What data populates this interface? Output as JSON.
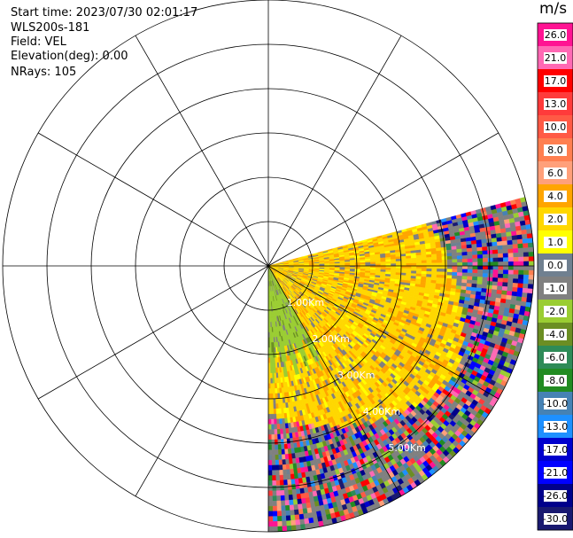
{
  "info": {
    "start_time": "Start time: 2023/07/30 02:01:17",
    "instrument": "WLS200s-181",
    "field": "Field: VEL",
    "elevation": "Elevation(deg): 0.00",
    "nrays": "NRays: 105"
  },
  "colorbar": {
    "unit": "m/s",
    "ticks": [
      "26.0",
      "21.0",
      "17.0",
      "13.0",
      "10.0",
      "8.0",
      "6.0",
      "4.0",
      "2.0",
      "1.0",
      "0.0",
      "-1.0",
      "-2.0",
      "-4.0",
      "-6.0",
      "-8.0",
      "-10.0",
      "-13.0",
      "-17.0",
      "-21.0",
      "-26.0",
      "-30.0"
    ],
    "colors": [
      "#ff1493",
      "#ff69b4",
      "#ff0000",
      "#ff3b3b",
      "#ff5a45",
      "#ff7f50",
      "#ffa07a",
      "#ffa500",
      "#ffd700",
      "#ffff00",
      "#708090",
      "#808080",
      "#9acd32",
      "#6b8e23",
      "#2e8b57",
      "#228b22",
      "#4682b4",
      "#1e90ff",
      "#0000cd",
      "#0000ff",
      "#00008b",
      "#191970"
    ]
  },
  "chart_data": {
    "type": "ppi-polar",
    "field": "VEL",
    "unit": "m/s",
    "sector_azimuth_deg": [
      75,
      180
    ],
    "range_labels": [
      "1.00Km",
      "2.00Km",
      "3.00Km",
      "4.00Km",
      "5.00Km"
    ],
    "n_range_rings": 6,
    "spoke_interval_deg": 30
  }
}
